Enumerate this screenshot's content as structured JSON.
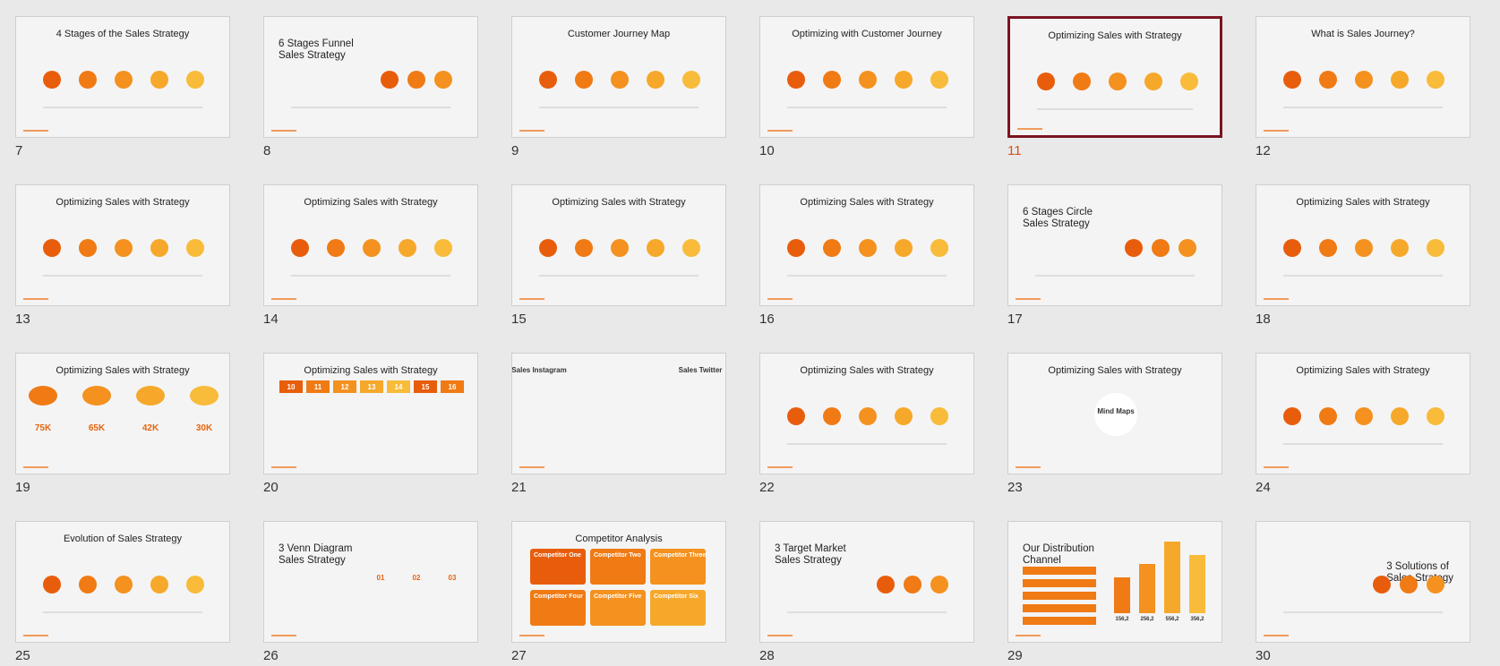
{
  "slides": [
    {
      "number": "7",
      "title": "4 Stages of the Sales Strategy"
    },
    {
      "number": "8",
      "title": [
        "6 Stages Funnel",
        "Sales Strategy"
      ]
    },
    {
      "number": "9",
      "title": "Customer Journey Map"
    },
    {
      "number": "10",
      "title": "Optimizing with Customer Journey"
    },
    {
      "number": "11",
      "title": "Optimizing Sales with Strategy",
      "selected": true
    },
    {
      "number": "12",
      "title": "What is Sales Journey?"
    },
    {
      "number": "13",
      "title": "Optimizing Sales with Strategy"
    },
    {
      "number": "14",
      "title": "Optimizing Sales with Strategy"
    },
    {
      "number": "15",
      "title": "Optimizing Sales with Strategy"
    },
    {
      "number": "16",
      "title": "Optimizing Sales with Strategy"
    },
    {
      "number": "17",
      "title": [
        "6 Stages Circle",
        "Sales Strategy"
      ]
    },
    {
      "number": "18",
      "title": "Optimizing Sales with Strategy"
    },
    {
      "number": "19",
      "title": "Optimizing Sales with Strategy",
      "labels": [
        "75K",
        "65K",
        "42K",
        "30K"
      ]
    },
    {
      "number": "20",
      "title": "Optimizing Sales with Strategy",
      "labels": [
        "10",
        "11",
        "12",
        "13",
        "14",
        "15",
        "16"
      ]
    },
    {
      "number": "21",
      "title": null,
      "labels": [
        "Sales Instagram",
        "Sales Twitter"
      ]
    },
    {
      "number": "22",
      "title": "Optimizing Sales with Strategy"
    },
    {
      "number": "23",
      "title": "Optimizing Sales with Strategy",
      "labels": [
        "Mind Maps"
      ]
    },
    {
      "number": "24",
      "title": "Optimizing Sales with Strategy"
    },
    {
      "number": "25",
      "title": "Evolution of Sales Strategy"
    },
    {
      "number": "26",
      "title": [
        "3 Venn Diagram",
        "Sales Strategy"
      ],
      "labels": [
        "01",
        "02",
        "03"
      ]
    },
    {
      "number": "27",
      "title": "Competitor Analysis",
      "labels": [
        "Competitor One",
        "Competitor Two",
        "Competitor Three",
        "Competitor Four",
        "Competitor Five",
        "Competitor Six"
      ]
    },
    {
      "number": "28",
      "title": [
        "3 Target Market",
        "Sales Strategy"
      ]
    },
    {
      "number": "29",
      "title": [
        "Our Distribution",
        "Channel"
      ],
      "labels": [
        "156,2",
        "256,2",
        "556,2",
        "356,2"
      ]
    },
    {
      "number": "30",
      "title": [
        "3 Solutions of",
        "Sales Strategy"
      ]
    }
  ]
}
